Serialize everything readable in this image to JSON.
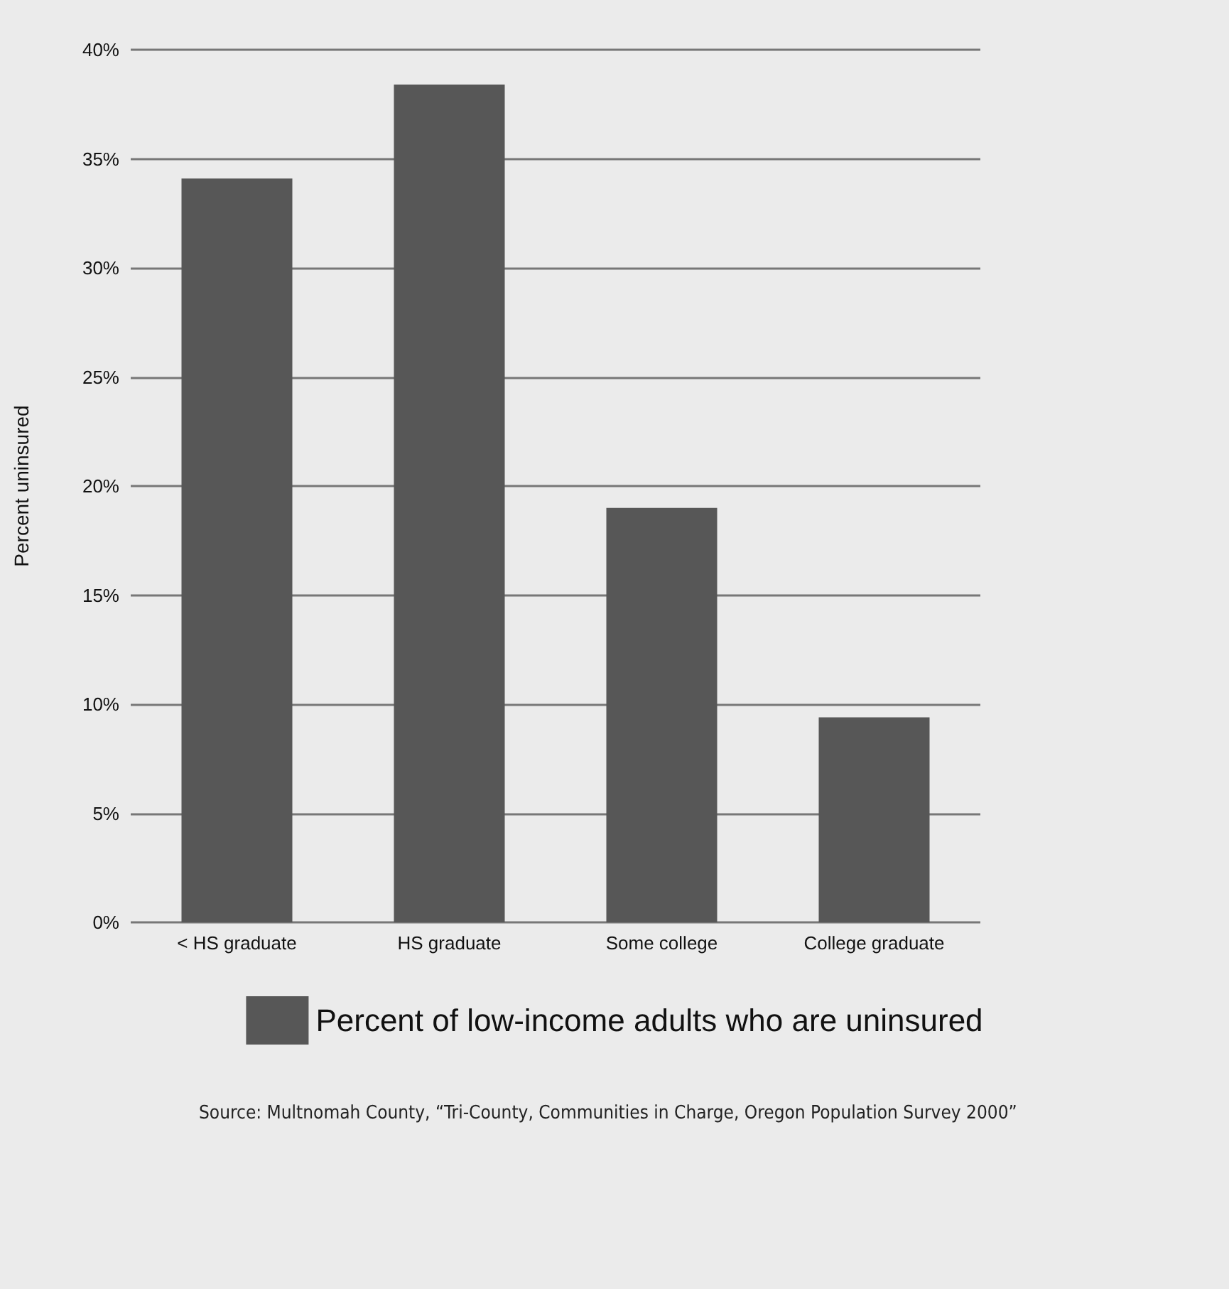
{
  "chart_data": {
    "type": "bar",
    "ylabel": "Percent uninsured",
    "categories": [
      "< HS graduate",
      "HS graduate",
      "Some college",
      "College graduate"
    ],
    "series": [
      {
        "name": "Percent of low-income adults who are uninsured",
        "color": "#575757",
        "values": [
          34.1,
          38.4,
          19.0,
          9.4
        ]
      }
    ],
    "ylim": [
      0,
      40
    ],
    "yticks": [
      {
        "value": 0,
        "label": "0%"
      },
      {
        "value": 5,
        "label": "5%"
      },
      {
        "value": 10,
        "label": "10%"
      },
      {
        "value": 15,
        "label": "15%"
      },
      {
        "value": 20,
        "label": "20%"
      },
      {
        "value": 25,
        "label": "25%"
      },
      {
        "value": 30,
        "label": "30%"
      },
      {
        "value": 35,
        "label": "35%"
      },
      {
        "value": 40,
        "label": "40%"
      }
    ],
    "grid": "y",
    "legend": "bottom",
    "annotations": [
      "Source: Multnomah County, “Tri-County, Communities in Charge, Oregon Population Survey 2000”"
    ]
  }
}
